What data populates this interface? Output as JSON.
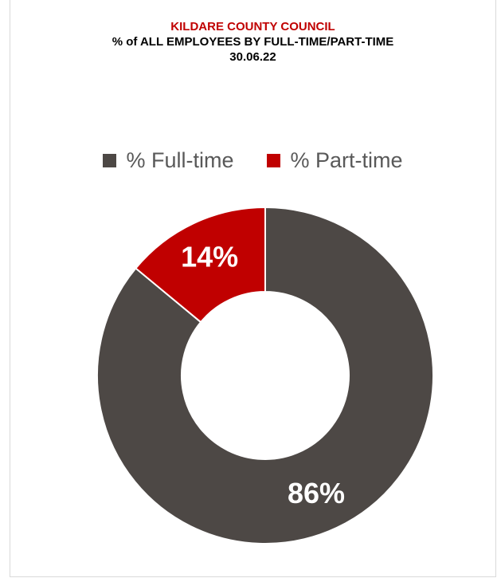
{
  "chart_data": {
    "type": "pie",
    "variant": "doughnut",
    "title": [
      "KILDARE COUNTY COUNCIL",
      "% of ALL EMPLOYEES BY FULL-TIME/PART-TIME",
      "30.06.22"
    ],
    "legend_position": "top",
    "slices": [
      {
        "name": "% Full-time",
        "value": 86,
        "label": "86%",
        "color": "#4d4845"
      },
      {
        "name": "% Part-time",
        "value": 14,
        "label": "14%",
        "color": "#c00000"
      }
    ]
  },
  "colors": {
    "title_accent": "#c00000",
    "title_text": "#000000",
    "legend_text": "#595959"
  }
}
